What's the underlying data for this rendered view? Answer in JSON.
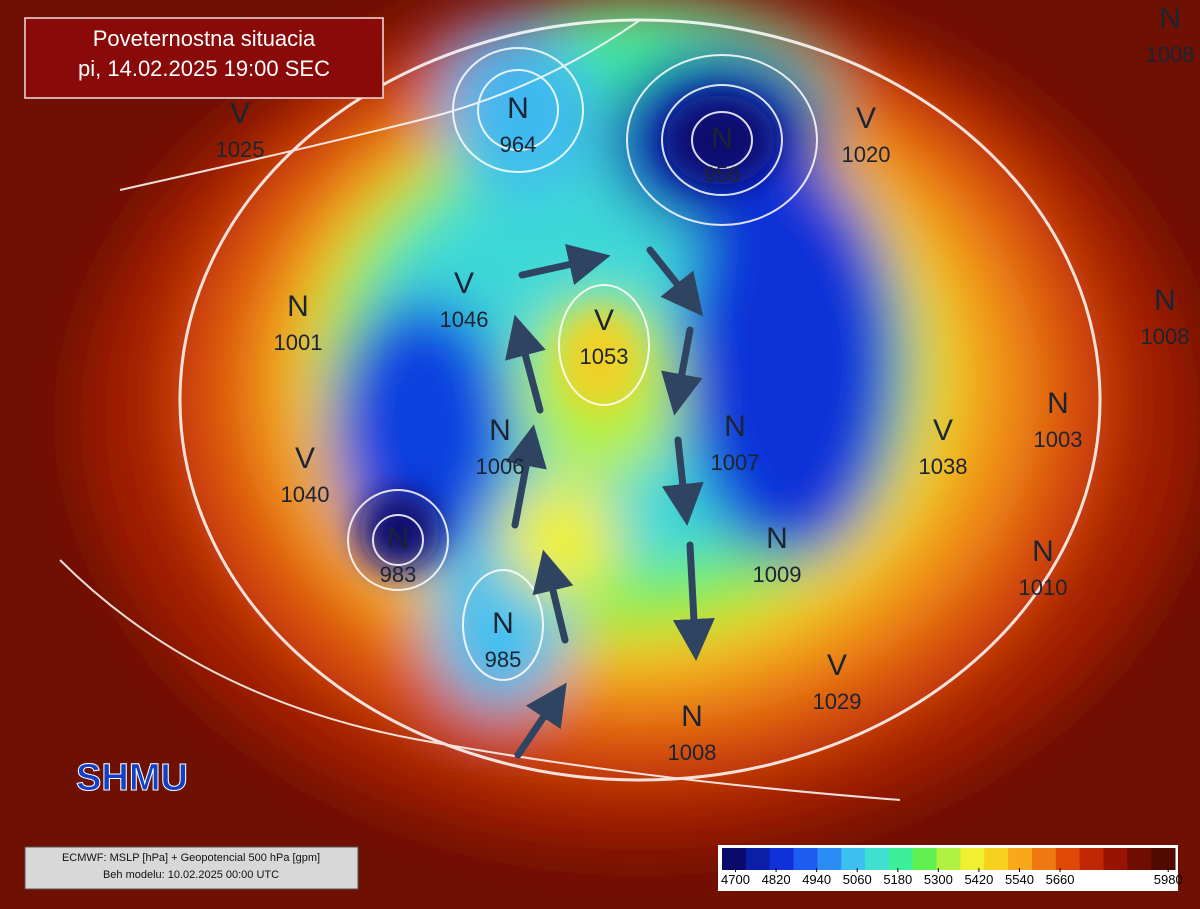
{
  "header": {
    "title": "Poveternostna situacia",
    "subtitle": "pi, 14.02.2025 19:00 SEC"
  },
  "systems": [
    {
      "letter": "V",
      "value": 1025
    },
    {
      "letter": "N",
      "value": 964
    },
    {
      "letter": "N",
      "value": 956
    },
    {
      "letter": "V",
      "value": 1020
    },
    {
      "letter": "N",
      "value": 1001
    },
    {
      "letter": "V",
      "value": 1046
    },
    {
      "letter": "V",
      "value": 1053
    },
    {
      "letter": "N",
      "value": 1006
    },
    {
      "letter": "N",
      "value": 1007
    },
    {
      "letter": "V",
      "value": 1038
    },
    {
      "letter": "N",
      "value": 1003
    },
    {
      "letter": "V",
      "value": 1040
    },
    {
      "letter": "N",
      "value": 983
    },
    {
      "letter": "N",
      "value": 1009
    },
    {
      "letter": "N",
      "value": 1010
    },
    {
      "letter": "N",
      "value": 985
    },
    {
      "letter": "V",
      "value": 1029
    },
    {
      "letter": "N",
      "value": 1008
    },
    {
      "letter": "N",
      "value": 1008
    },
    {
      "letter": "N",
      "value": 1008
    }
  ],
  "source": {
    "line1": "ECMWF: MSLP [hPa] + Geopotencial 500 hPa [gpm]",
    "line2": "Beh modelu: 10.02.2025 00:00 UTC"
  },
  "logo": "SHMU",
  "colorbar": {
    "range": [
      4660,
      6000
    ],
    "ticks": [
      4700,
      4820,
      4940,
      5060,
      5180,
      5300,
      5420,
      5540,
      5660,
      5980
    ],
    "colors": [
      "#0a0a6e",
      "#0b1ea8",
      "#1030d8",
      "#1c5cf0",
      "#2a8cf4",
      "#3cc0f0",
      "#3fe0d0",
      "#3cf09a",
      "#60f050",
      "#b0f040",
      "#f0f030",
      "#f8d020",
      "#f8a818",
      "#f07810",
      "#e04808",
      "#c02804",
      "#981402",
      "#700c02",
      "#500a02"
    ]
  }
}
